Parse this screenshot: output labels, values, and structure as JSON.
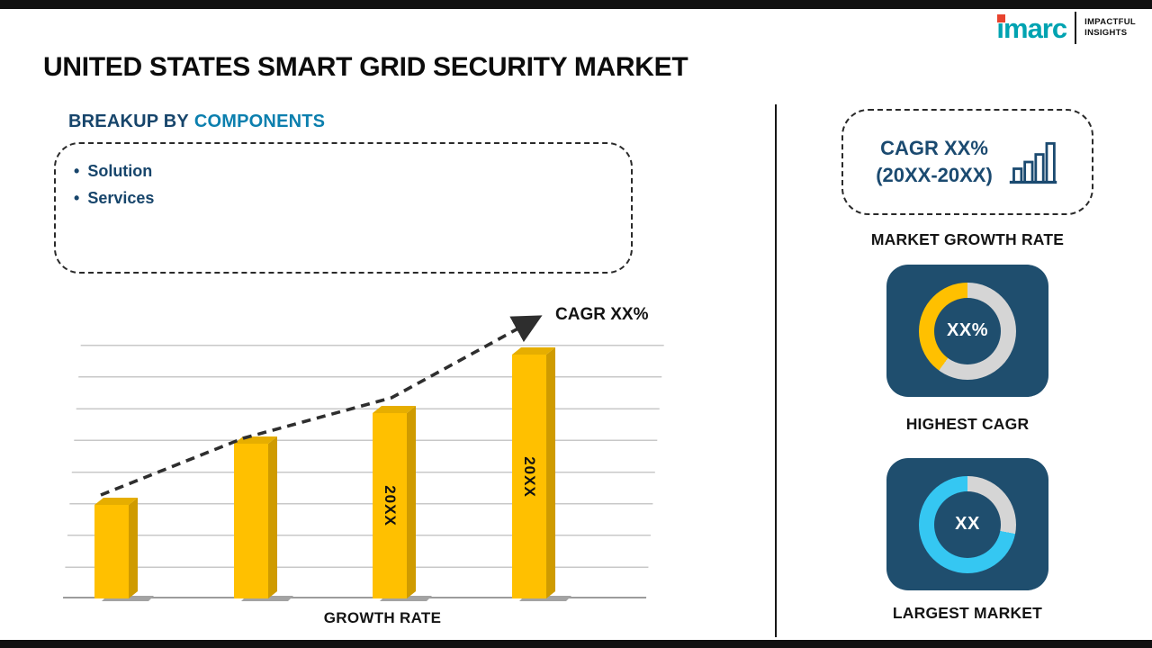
{
  "page": {
    "title": "UNITED STATES SMART GRID SECURITY MARKET"
  },
  "logo": {
    "brand": "imarc",
    "tagline_line1": "IMPACTFUL",
    "tagline_line2": "INSIGHTS"
  },
  "breakup": {
    "prefix": "BREAKUP BY",
    "highlight": "COMPONENTS",
    "items": [
      "Solution",
      "Services"
    ]
  },
  "chart_data": [
    {
      "type": "bar",
      "title": "GROWTH RATE",
      "bar_labels": [
        "",
        "",
        "20XX",
        "20XX"
      ],
      "values": [
        37,
        61,
        73,
        96
      ],
      "ylim": [
        0,
        100
      ],
      "annotation": "CAGR XX%",
      "bar_color": "#FFC000",
      "trend": "dashed-arrow-up",
      "grid": true
    },
    {
      "type": "pie",
      "title": "HIGHEST CAGR",
      "center_label": "XX%",
      "slices": [
        {
          "name": "highlight",
          "value": 40,
          "color": "#FFC000"
        },
        {
          "name": "remainder",
          "value": 60,
          "color": "#D5D5D5"
        }
      ]
    },
    {
      "type": "pie",
      "title": "LARGEST MARKET",
      "center_label": "XX",
      "slices": [
        {
          "name": "highlight",
          "value": 72,
          "color": "#35C7F2"
        },
        {
          "name": "remainder",
          "value": 28,
          "color": "#D5D5D5"
        }
      ]
    }
  ],
  "right_panel": {
    "cagr_card": {
      "line1": "CAGR XX%",
      "line2": "(20XX-20XX)"
    },
    "market_growth_label": "MARKET GROWTH RATE"
  },
  "colors": {
    "navy": "#1F4E6E",
    "navy_text": "#17456B",
    "teal_heading": "#0B7FAE",
    "bar_yellow": "#FFC000",
    "donut_cyan": "#35C7F2",
    "ring_gray": "#D5D5D5",
    "logo_teal": "#00A3B1",
    "logo_red": "#E8432E"
  }
}
